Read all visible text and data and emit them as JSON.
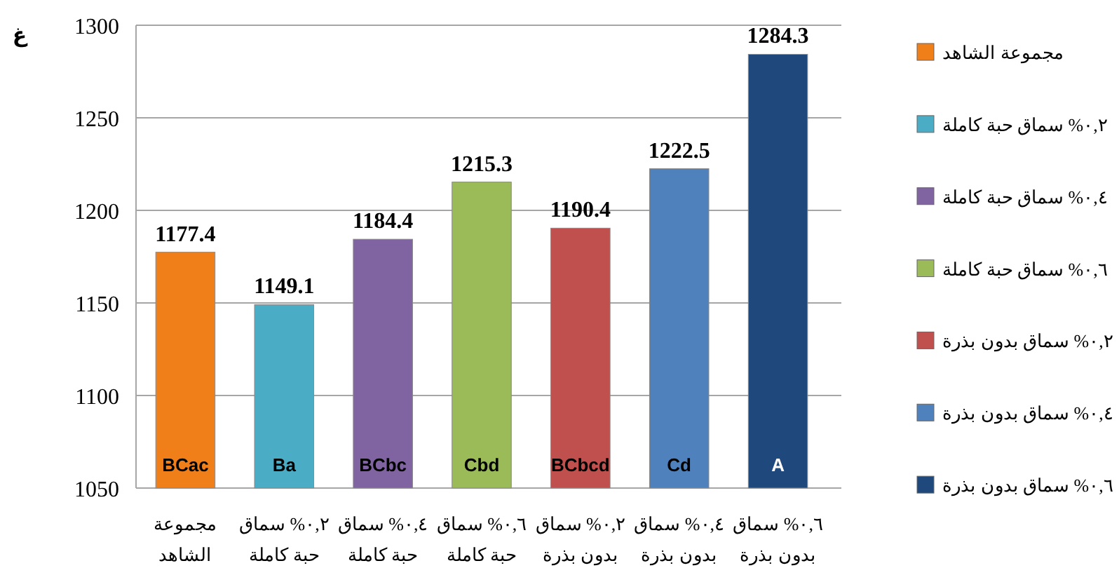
{
  "chart_data": {
    "type": "bar",
    "ylabel": "غ",
    "categories": [
      "مجموعة الشاهد",
      "٠,٢% سماق حبة كاملة",
      "٠,٤% سماق حبة كاملة",
      "٠,٦% سماق حبة كاملة",
      "٠,٢% سماق بدون بذرة",
      "٠,٤% سماق بدون بذرة",
      "٠,٦% سماق بدون بذرة"
    ],
    "series": [
      {
        "name": "مجموعة الشاهد",
        "color": "#f07f1a",
        "values": [
          1177.4,
          null,
          null,
          null,
          null,
          null,
          null
        ]
      },
      {
        "name": "٠,٢% سماق حبة كاملة",
        "color": "#4bacc6",
        "values": [
          null,
          1149.1,
          null,
          null,
          null,
          null,
          null
        ]
      },
      {
        "name": "٠,٤% سماق حبة كاملة",
        "color": "#8064a2",
        "values": [
          null,
          null,
          1184.4,
          null,
          null,
          null,
          null
        ]
      },
      {
        "name": "٠,٦% سماق حبة كاملة",
        "color": "#9bbb59",
        "values": [
          null,
          null,
          null,
          1215.3,
          null,
          null,
          null
        ]
      },
      {
        "name": "٠,٢% سماق بدون بذرة",
        "color": "#c0504d",
        "values": [
          null,
          null,
          null,
          null,
          1190.4,
          null,
          null
        ]
      },
      {
        "name": "٠,٤% سماق بدون بذرة",
        "color": "#4f81bd",
        "values": [
          null,
          null,
          null,
          null,
          null,
          1222.5,
          null
        ]
      },
      {
        "name": "٠,٦% سماق بدون بذرة",
        "color": "#1f497d",
        "values": [
          null,
          null,
          null,
          null,
          null,
          null,
          1284.3
        ]
      }
    ],
    "ylim": [
      1050,
      1300
    ],
    "yticks": [
      1050,
      1100,
      1150,
      1200,
      1250,
      1300
    ],
    "grid": "y",
    "legend": "right",
    "data_labels": true,
    "annotations": [
      "BCac",
      "Ba",
      "BCbc",
      "Cbd",
      "BCbcd",
      "Cd",
      "A"
    ]
  }
}
